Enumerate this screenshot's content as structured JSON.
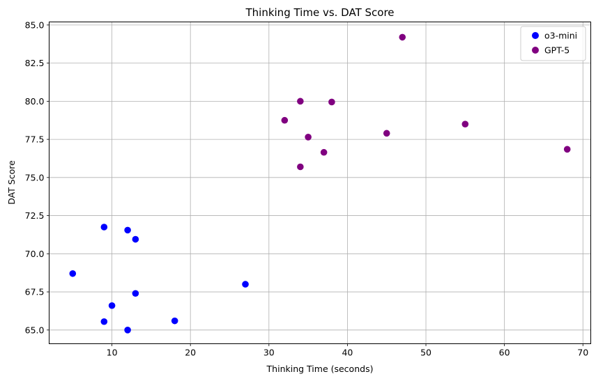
{
  "chart_data": {
    "type": "scatter",
    "title": "Thinking Time vs. DAT Score",
    "xlabel": "Thinking Time (seconds)",
    "ylabel": "DAT Score",
    "xlim": [
      2,
      71
    ],
    "ylim": [
      64.1,
      85.2
    ],
    "xticks": [
      10,
      20,
      30,
      40,
      50,
      60,
      70
    ],
    "yticks": [
      65.0,
      67.5,
      70.0,
      72.5,
      75.0,
      77.5,
      80.0,
      82.5,
      85.0
    ],
    "xtick_labels": [
      "10",
      "20",
      "30",
      "40",
      "50",
      "60",
      "70"
    ],
    "ytick_labels": [
      "65.0",
      "67.5",
      "70.0",
      "72.5",
      "75.0",
      "77.5",
      "80.0",
      "82.5",
      "85.0"
    ],
    "grid": true,
    "legend_position": "top-right",
    "series": [
      {
        "name": "o3-mini",
        "color": "#0000ff",
        "points": [
          {
            "x": 5,
            "y": 68.7
          },
          {
            "x": 9,
            "y": 71.75
          },
          {
            "x": 9,
            "y": 65.55
          },
          {
            "x": 10,
            "y": 66.6
          },
          {
            "x": 12,
            "y": 71.55
          },
          {
            "x": 12,
            "y": 65.0
          },
          {
            "x": 13,
            "y": 70.95
          },
          {
            "x": 13,
            "y": 67.4
          },
          {
            "x": 18,
            "y": 65.6
          },
          {
            "x": 27,
            "y": 68.0
          }
        ]
      },
      {
        "name": "GPT-5",
        "color": "#800080",
        "points": [
          {
            "x": 32,
            "y": 78.75
          },
          {
            "x": 34,
            "y": 80.0
          },
          {
            "x": 34,
            "y": 75.7
          },
          {
            "x": 35,
            "y": 77.65
          },
          {
            "x": 37,
            "y": 76.65
          },
          {
            "x": 38,
            "y": 79.95
          },
          {
            "x": 45,
            "y": 77.9
          },
          {
            "x": 47,
            "y": 84.2
          },
          {
            "x": 55,
            "y": 78.5
          },
          {
            "x": 68,
            "y": 76.85
          }
        ]
      }
    ]
  }
}
